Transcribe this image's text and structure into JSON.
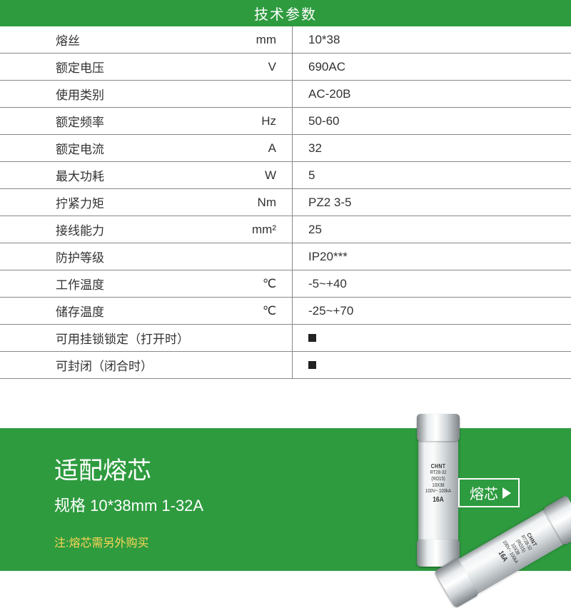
{
  "header": {
    "title": "技术参数"
  },
  "specs": [
    {
      "label": "熔丝",
      "unit": "mm",
      "value": "10*38"
    },
    {
      "label": "额定电压",
      "unit": "V",
      "value": "690AC"
    },
    {
      "label": "使用类别",
      "unit": "",
      "value": "AC-20B"
    },
    {
      "label": "额定频率",
      "unit": "Hz",
      "value": "50-60"
    },
    {
      "label": "额定电流",
      "unit": "A",
      "value": "32"
    },
    {
      "label": "最大功耗",
      "unit": "W",
      "value": "5"
    },
    {
      "label": "拧紧力矩",
      "unit": "Nm",
      "value": "PZ2 3-5"
    },
    {
      "label": "接线能力",
      "unit": "mm²",
      "value": "25"
    },
    {
      "label": "防护等级",
      "unit": "",
      "value": "IP20***"
    },
    {
      "label": "工作温度",
      "unit": "℃",
      "value": "-5~+40"
    },
    {
      "label": "储存温度",
      "unit": "℃",
      "value": "-25~+70"
    },
    {
      "label": "可用挂锁锁定（打开时）",
      "unit": "",
      "value": "■",
      "square": true
    },
    {
      "label": "可封闭（闭合时）",
      "unit": "",
      "value": "■",
      "square": true
    }
  ],
  "footer": {
    "title": "适配熔芯",
    "spec_line": "规格 10*38mm   1-32A",
    "note": "注:熔芯需另外购买",
    "tag_label": "熔芯"
  },
  "fuse_label": {
    "brand": "CHNT",
    "model": "RT28-32",
    "sub": "(RO15)",
    "size": "10X38",
    "rating": "100V~ 100kA",
    "amps": "16A"
  },
  "style": {
    "header_bg": "#2e9b3f",
    "header_fg": "#ffffff",
    "row_border": "#888888",
    "text_color": "#333333",
    "footer_bg": "#2e9b3f",
    "note_color": "#ffd756",
    "label_fontsize": 17,
    "footer_title_fontsize": 34,
    "footer_spec_fontsize": 22,
    "footer_note_fontsize": 16
  }
}
